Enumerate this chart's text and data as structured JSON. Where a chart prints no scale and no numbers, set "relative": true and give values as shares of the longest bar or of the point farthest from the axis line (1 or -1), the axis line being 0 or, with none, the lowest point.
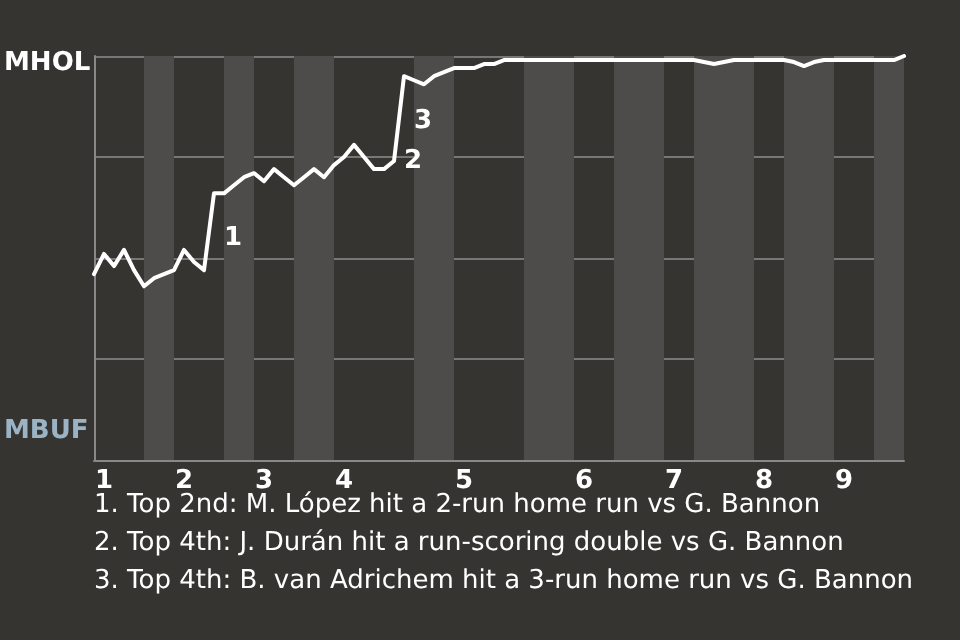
{
  "chart_data": {
    "type": "line",
    "relative": true,
    "categories": [
      null,
      "1",
      null,
      null,
      null,
      null,
      null,
      null,
      null,
      "2",
      null,
      null,
      null,
      null,
      null,
      null,
      null,
      "3",
      null,
      null,
      null,
      null,
      null,
      null,
      null,
      "4",
      null,
      null,
      null,
      null,
      null,
      null,
      null,
      null,
      null,
      null,
      null,
      "5",
      null,
      null,
      null,
      null,
      null,
      null,
      null,
      null,
      null,
      null,
      null,
      "6",
      null,
      null,
      null,
      null,
      null,
      null,
      null,
      null,
      "7",
      null,
      null,
      null,
      null,
      null,
      null,
      null,
      null,
      "8",
      null,
      null,
      null,
      null,
      null,
      null,
      null,
      "9",
      null,
      null,
      null,
      null,
      null,
      null
    ],
    "series": [
      {
        "color": "#ffffff",
        "values": [
          0.46,
          0.51,
          0.48,
          0.52,
          0.47,
          0.43,
          0.45,
          0.46,
          0.47,
          0.52,
          0.49,
          0.47,
          0.66,
          0.66,
          0.68,
          0.7,
          0.71,
          0.69,
          0.72,
          0.7,
          0.68,
          0.7,
          0.72,
          0.7,
          0.73,
          0.75,
          0.78,
          0.75,
          0.72,
          0.72,
          0.74,
          0.95,
          0.94,
          0.93,
          0.95,
          0.96,
          0.97,
          0.97,
          0.97,
          0.98,
          0.98,
          0.99,
          0.99,
          0.99,
          0.99,
          0.99,
          0.99,
          0.99,
          0.99,
          0.99,
          0.99,
          0.99,
          0.99,
          0.99,
          0.99,
          0.99,
          0.99,
          0.99,
          0.99,
          0.99,
          0.99,
          0.985,
          0.98,
          0.985,
          0.99,
          0.99,
          0.99,
          0.99,
          0.99,
          0.99,
          0.985,
          0.975,
          0.985,
          0.99,
          0.99,
          0.99,
          0.99,
          0.99,
          0.99,
          0.99,
          0.99,
          1
        ]
      }
    ],
    "grid": "y",
    "marker": "none",
    "annotations": [
      "MHOL",
      "MBUF",
      "1",
      "2",
      "3",
      "1. Top 2nd: M. López hit a 2-run home run vs G. Bannon",
      "2. Top 4th: J. Durán hit a run-scoring double vs G. Bannon",
      "3. Top 4th: B. van Adrichem hit a 3-run home run vs G. Bannon"
    ]
  }
}
